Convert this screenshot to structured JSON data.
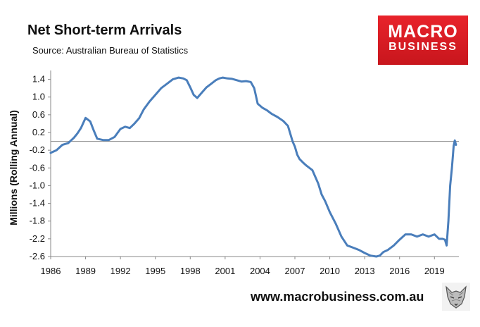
{
  "header": {
    "title": "Net Short-term Arrivals",
    "subtitle": "Source: Australian Bureau of Statistics"
  },
  "logo": {
    "line1": "MACRO",
    "line2": "BUSINESS"
  },
  "footer": {
    "url": "www.macrobusiness.com.au",
    "icon": "fox-icon"
  },
  "chart_data": {
    "type": "line",
    "title": "Net Short-term Arrivals",
    "subtitle": "Source: Australian Bureau of Statistics",
    "xlabel": "",
    "ylabel": "Millions (Rolling Annual)",
    "xlim": [
      1986,
      2021.1
    ],
    "ylim": [
      -2.6,
      1.6
    ],
    "grid": false,
    "zero_line": true,
    "x_ticks": [
      1986,
      1989,
      1992,
      1995,
      1998,
      2001,
      2004,
      2007,
      2010,
      2013,
      2016,
      2019
    ],
    "y_ticks": [
      1.4,
      1.0,
      0.6,
      0.2,
      -0.2,
      -0.6,
      -1.0,
      -1.4,
      -1.8,
      -2.2,
      -2.6
    ],
    "x_tick_labels": [
      "1986",
      "1989",
      "1992",
      "1995",
      "1998",
      "2001",
      "2004",
      "2007",
      "2010",
      "2013",
      "2016",
      "2019"
    ],
    "y_tick_labels": [
      "1.4",
      "1.0",
      "0.6",
      "0.2",
      "-0.2",
      "-0.6",
      "-1.0",
      "-1.4",
      "-1.8",
      "-2.2",
      "-2.6"
    ],
    "series_color": "#4a7ebb",
    "series": [
      {
        "name": "",
        "x": [
          1986.0,
          1986.5,
          1987.0,
          1987.5,
          1988.0,
          1988.3,
          1988.6,
          1989.0,
          1989.4,
          1989.7,
          1990.0,
          1990.5,
          1991.0,
          1991.5,
          1992.0,
          1992.4,
          1992.8,
          1993.2,
          1993.6,
          1994.0,
          1994.5,
          1995.0,
          1995.5,
          1996.0,
          1996.5,
          1997.0,
          1997.4,
          1997.7,
          1998.0,
          1998.3,
          1998.6,
          1999.0,
          1999.4,
          1999.8,
          2000.2,
          2000.5,
          2000.8,
          2001.2,
          2001.6,
          2002.0,
          2002.4,
          2002.8,
          2003.2,
          2003.5,
          2003.8,
          2004.2,
          2004.6,
          2005.0,
          2005.5,
          2006.0,
          2006.4,
          2006.8,
          2007.0,
          2007.2,
          2007.4,
          2007.7,
          2008.0,
          2008.5,
          2009.0,
          2009.3,
          2009.6,
          2010.0,
          2010.5,
          2011.0,
          2011.5,
          2012.0,
          2012.5,
          2013.0,
          2013.5,
          2014.0,
          2014.3,
          2014.6,
          2015.0,
          2015.5,
          2016.0,
          2016.5,
          2017.0,
          2017.5,
          2018.0,
          2018.5,
          2019.0,
          2019.4,
          2019.7,
          2019.9,
          2020.05,
          2020.2,
          2020.35,
          2020.5,
          2020.65,
          2020.75,
          2020.85
        ],
        "values": [
          -0.26,
          -0.2,
          -0.08,
          -0.04,
          0.08,
          0.18,
          0.3,
          0.53,
          0.45,
          0.25,
          0.06,
          0.03,
          0.03,
          0.1,
          0.28,
          0.33,
          0.3,
          0.4,
          0.52,
          0.72,
          0.9,
          1.05,
          1.2,
          1.3,
          1.4,
          1.44,
          1.42,
          1.38,
          1.22,
          1.05,
          0.98,
          1.1,
          1.22,
          1.3,
          1.38,
          1.42,
          1.44,
          1.42,
          1.41,
          1.38,
          1.35,
          1.36,
          1.34,
          1.2,
          0.85,
          0.76,
          0.7,
          0.62,
          0.55,
          0.46,
          0.35,
          0.0,
          -0.12,
          -0.3,
          -0.4,
          -0.48,
          -0.55,
          -0.65,
          -0.95,
          -1.2,
          -1.35,
          -1.6,
          -1.85,
          -2.15,
          -2.35,
          -2.4,
          -2.45,
          -2.52,
          -2.58,
          -2.6,
          -2.58,
          -2.5,
          -2.45,
          -2.35,
          -2.22,
          -2.1,
          -2.1,
          -2.15,
          -2.1,
          -2.15,
          -2.1,
          -2.2,
          -2.2,
          -2.22,
          -2.35,
          -1.8,
          -1.0,
          -0.6,
          -0.1,
          0.02,
          -0.08
        ]
      }
    ]
  }
}
